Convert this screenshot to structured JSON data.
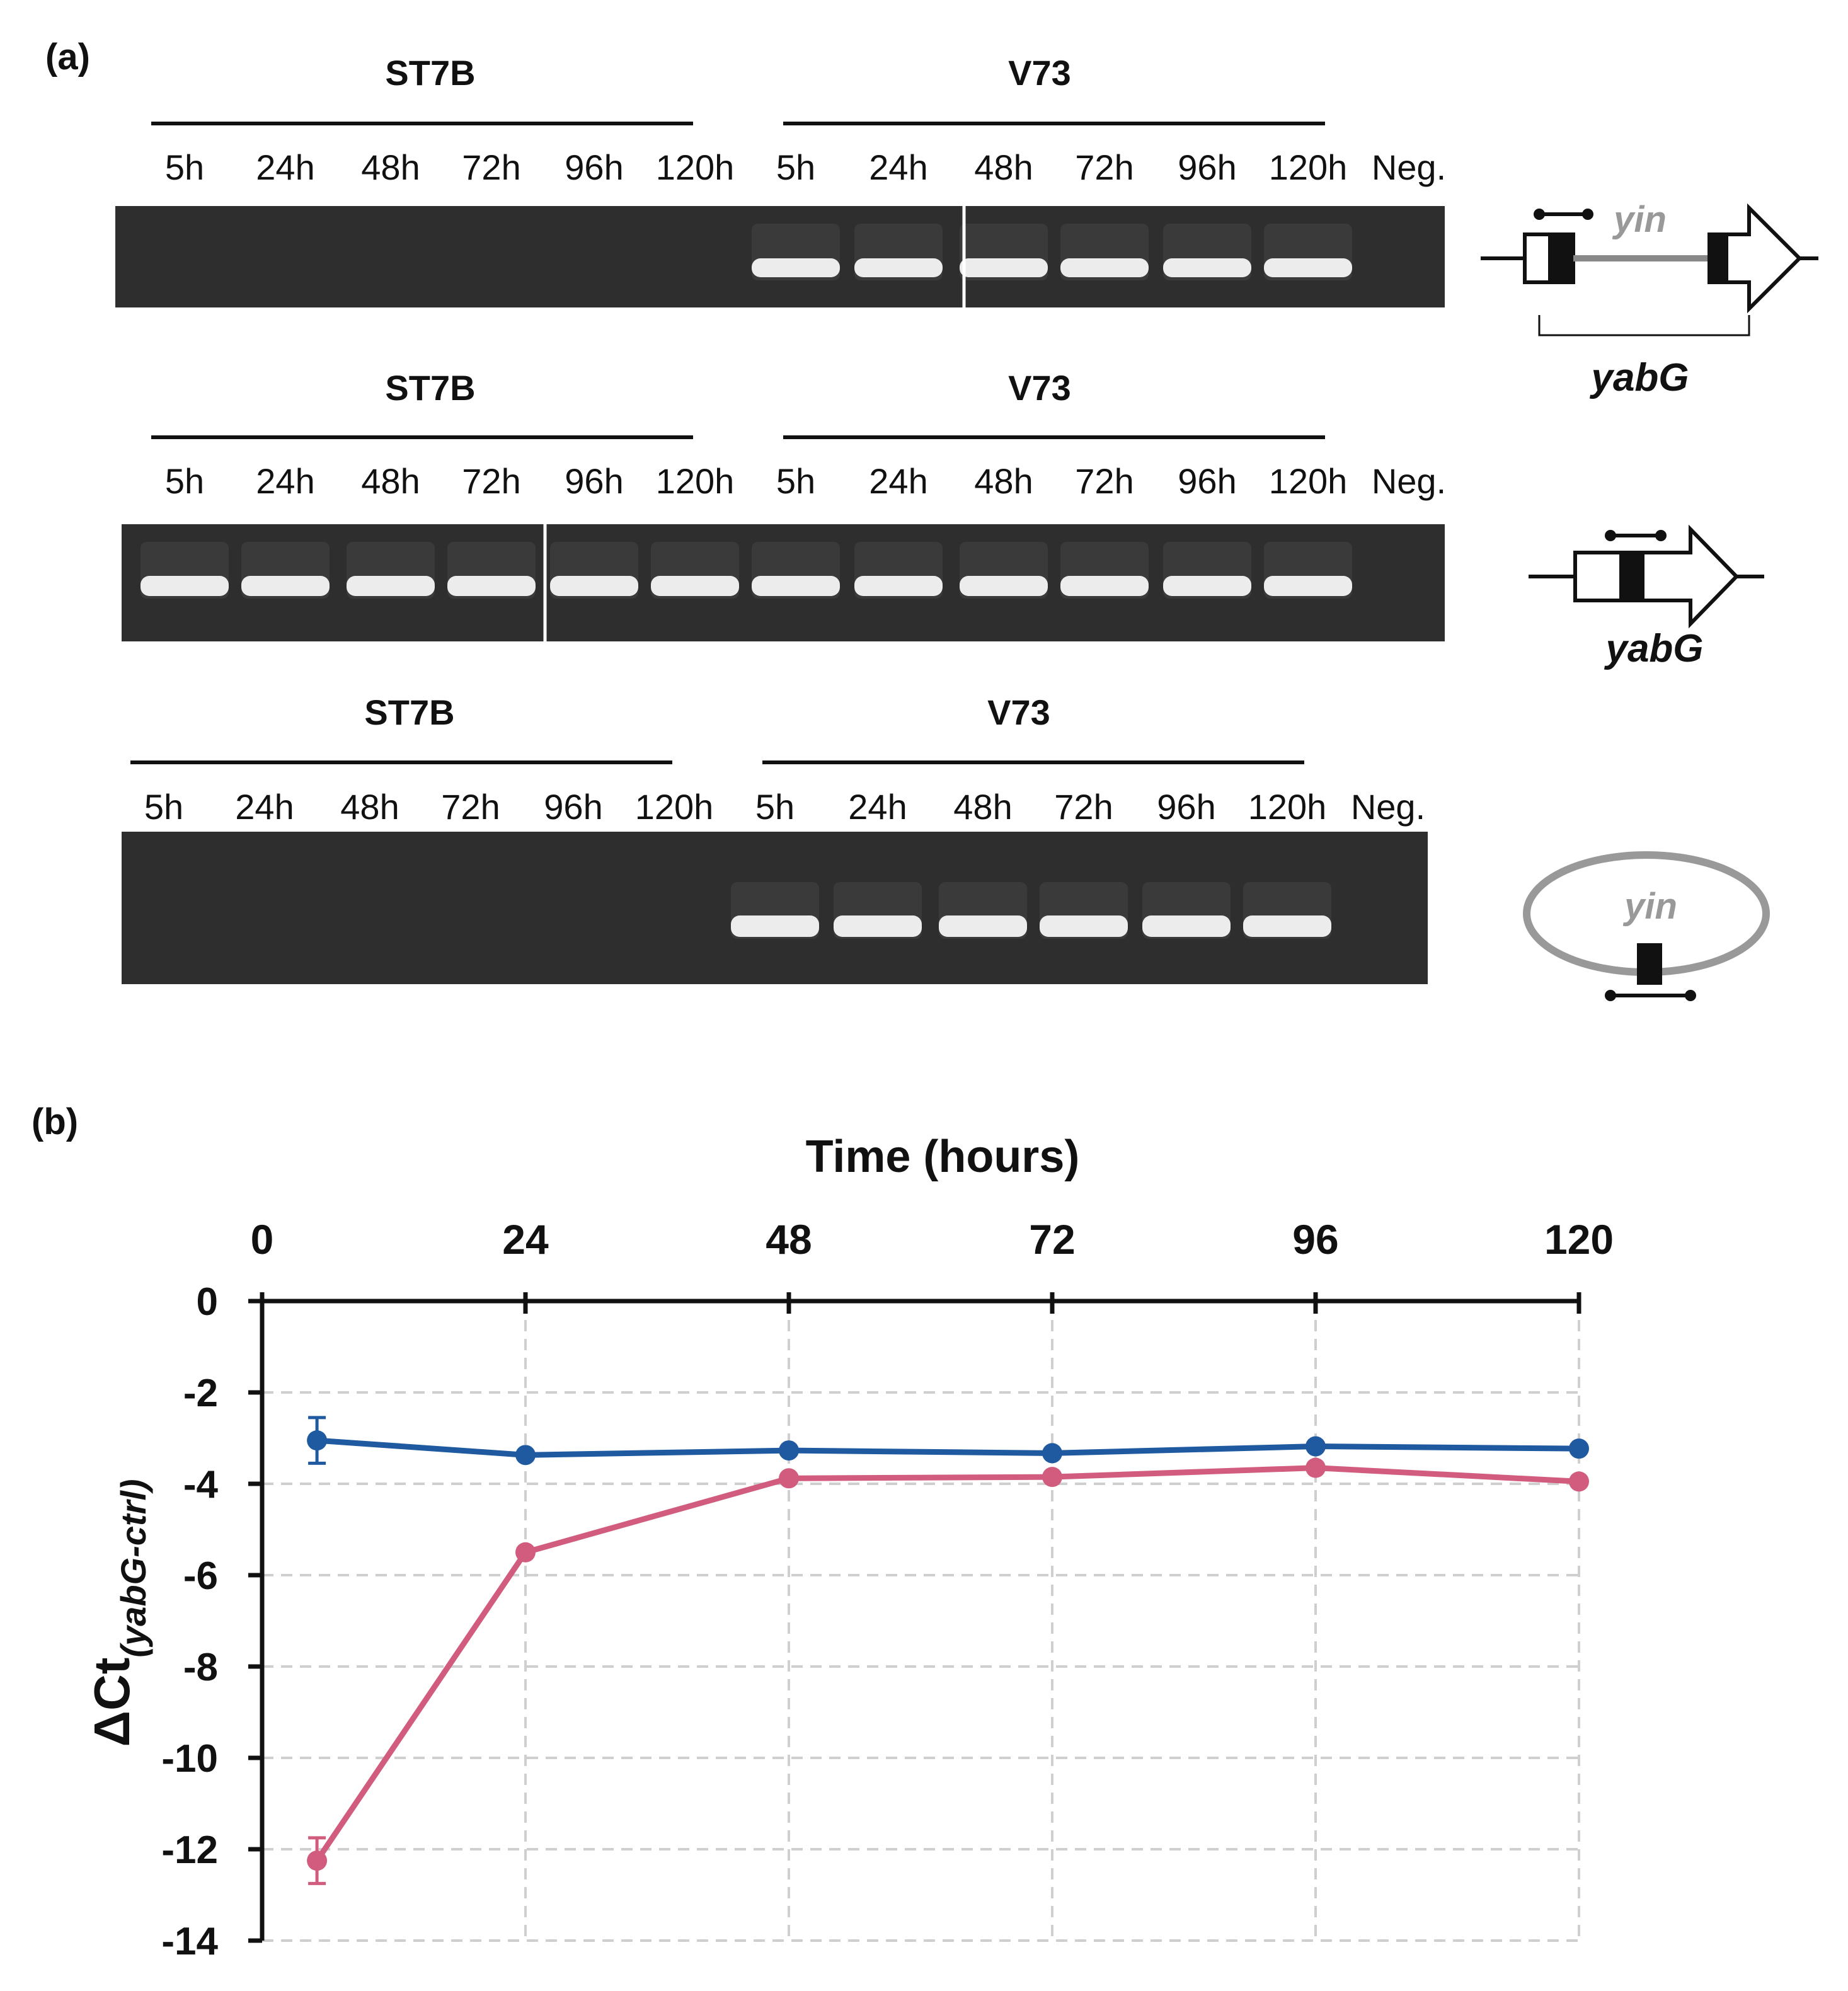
{
  "panel_a": {
    "label": "(a)",
    "lane_labels": [
      "5h",
      "24h",
      "48h",
      "72h",
      "96h",
      "120h",
      "5h",
      "24h",
      "48h",
      "72h",
      "96h",
      "120h",
      "Neg."
    ],
    "gels": [
      {
        "group_left": "ST7B",
        "group_right": "V73",
        "bands": [
          false,
          false,
          false,
          false,
          false,
          false,
          true,
          true,
          true,
          true,
          true,
          true,
          false
        ],
        "schematic": {
          "top_label": "yin",
          "bottom_label": "yabG"
        }
      },
      {
        "group_left": "ST7B",
        "group_right": "V73",
        "bands": [
          true,
          true,
          true,
          true,
          true,
          true,
          true,
          true,
          true,
          true,
          true,
          true,
          false
        ],
        "schematic": {
          "bottom_label": "yabG"
        }
      },
      {
        "group_left": "ST7B",
        "group_right": "V73",
        "bands": [
          false,
          false,
          false,
          false,
          false,
          false,
          true,
          true,
          true,
          true,
          true,
          true,
          false
        ],
        "schematic": {
          "center_label": "yin"
        }
      }
    ]
  },
  "panel_b": {
    "label": "(b)"
  },
  "chart_data": {
    "type": "line",
    "title": "",
    "xlabel": "Time (hours)",
    "ylabel": "ΔCt",
    "ylabel_subscript": "(yabG-ctrl)",
    "x_axis_position": "top",
    "xlim": [
      0,
      120
    ],
    "ylim": [
      -14,
      0
    ],
    "x_ticks": [
      0,
      24,
      48,
      72,
      96,
      120
    ],
    "y_ticks": [
      0,
      -2,
      -4,
      -6,
      -8,
      -10,
      -12,
      -14
    ],
    "grid": true,
    "series": [
      {
        "color": "#1f5aa0",
        "x": [
          5,
          24,
          48,
          72,
          96,
          120
        ],
        "y": [
          -3.05,
          -3.37,
          -3.27,
          -3.33,
          -3.18,
          -3.23
        ],
        "error": [
          0.5,
          0,
          0,
          0,
          0,
          0
        ]
      },
      {
        "color": "#d15c7e",
        "x": [
          5,
          24,
          48,
          72,
          96,
          120
        ],
        "y": [
          -12.25,
          -5.5,
          -3.88,
          -3.85,
          -3.65,
          -3.95
        ],
        "error": [
          0.5,
          0,
          0,
          0,
          0,
          0
        ]
      }
    ]
  }
}
